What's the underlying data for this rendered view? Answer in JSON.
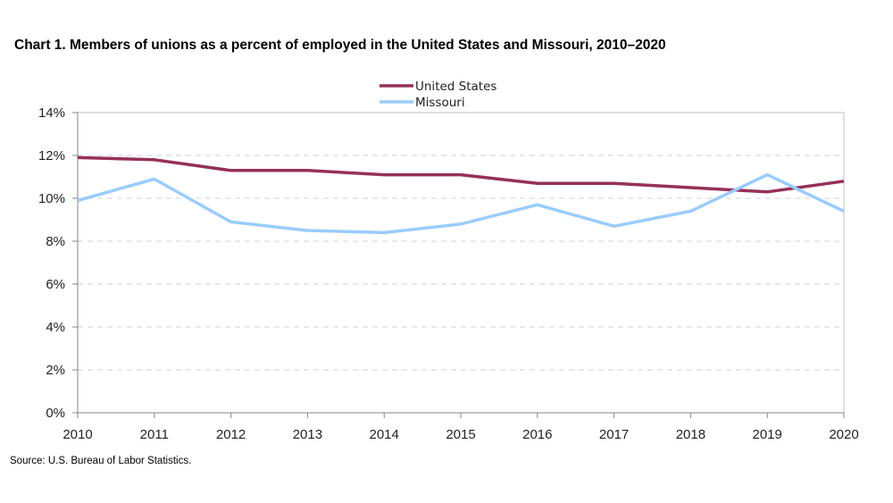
{
  "source": "Source: U.S. Bureau of Labor Statistics.",
  "chart_data": {
    "type": "line",
    "title": "Chart 1. Members of unions as a percent of employed in the United  States and Missouri,  2010–2020",
    "xlabel": "",
    "ylabel": "",
    "x": [
      "2010",
      "2011",
      "2012",
      "2013",
      "2014",
      "2015",
      "2016",
      "2017",
      "2018",
      "2019",
      "2020"
    ],
    "ylim": [
      0,
      14
    ],
    "yticks": [
      0,
      2,
      4,
      6,
      8,
      10,
      12,
      14
    ],
    "ytick_labels": [
      "0%",
      "2%",
      "4%",
      "6%",
      "8%",
      "10%",
      "12%",
      "14%"
    ],
    "grid": true,
    "legend_position": "top-center",
    "series": [
      {
        "name": "United States",
        "color": "#953158",
        "values": [
          11.9,
          11.8,
          11.3,
          11.3,
          11.1,
          11.1,
          10.7,
          10.7,
          10.5,
          10.3,
          10.8
        ]
      },
      {
        "name": "Missouri",
        "color": "#99ccff",
        "values": [
          9.9,
          10.9,
          8.9,
          8.5,
          8.4,
          8.8,
          9.7,
          8.7,
          9.4,
          11.1,
          9.4
        ]
      }
    ]
  }
}
